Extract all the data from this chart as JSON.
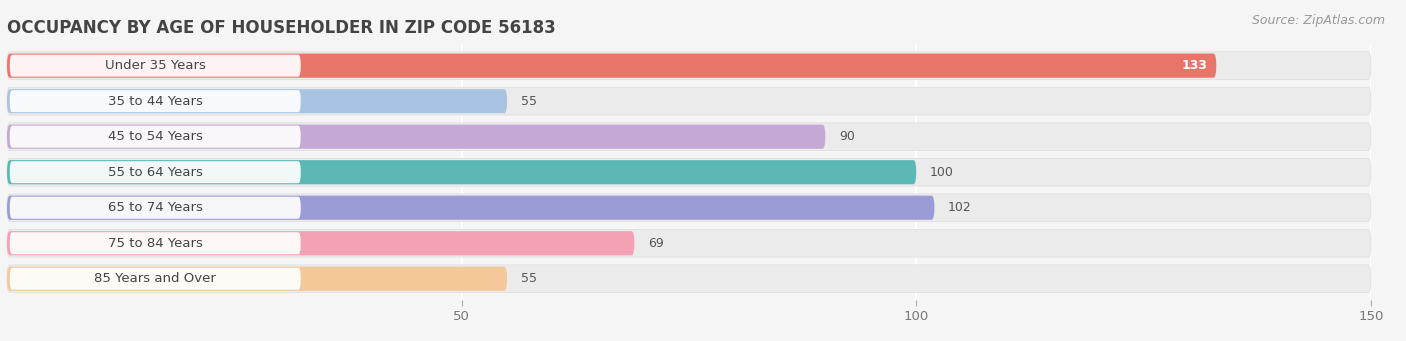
{
  "title": "OCCUPANCY BY AGE OF HOUSEHOLDER IN ZIP CODE 56183",
  "source": "Source: ZipAtlas.com",
  "categories": [
    "Under 35 Years",
    "35 to 44 Years",
    "45 to 54 Years",
    "55 to 64 Years",
    "65 to 74 Years",
    "75 to 84 Years",
    "85 Years and Over"
  ],
  "values": [
    133,
    55,
    90,
    100,
    102,
    69,
    55
  ],
  "bar_colors": [
    "#E8756A",
    "#A9C4E2",
    "#C5A8D5",
    "#5BB8B4",
    "#9B9BD6",
    "#F4A0B5",
    "#F5C89A"
  ],
  "background_color": "#f5f5f5",
  "bar_row_color": "#ebebeb",
  "xlim_max": 150,
  "xticks": [
    50,
    100,
    150
  ],
  "title_fontsize": 12,
  "source_fontsize": 9,
  "label_fontsize": 9.5,
  "value_fontsize": 9
}
